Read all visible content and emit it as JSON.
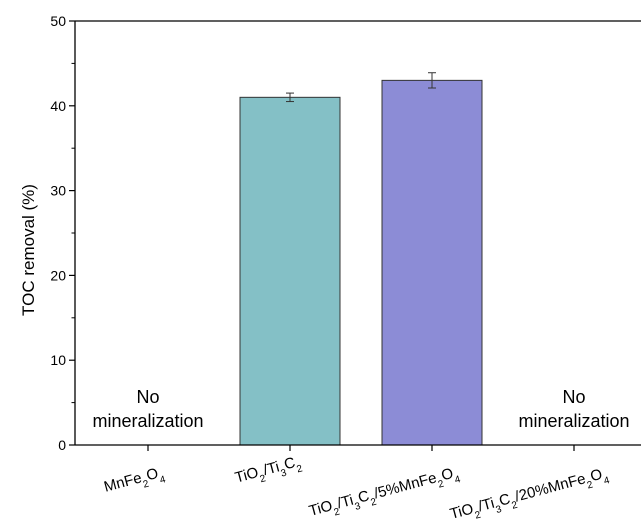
{
  "chart_data": {
    "type": "bar",
    "title": "",
    "xlabel": "",
    "ylabel": "TOC removal (%)",
    "ylim": [
      0,
      50
    ],
    "yticks": [
      0,
      10,
      20,
      30,
      40,
      50
    ],
    "grid": false,
    "categories": [
      "MnFe₂O₄",
      "TiO₂/Ti₃C₂",
      "TiO₂/Ti₃C₂/5%MnFe₂O₄",
      "TiO₂/Ti₃C₂/20%MnFe₂O₄"
    ],
    "values": [
      0,
      41,
      43,
      0
    ],
    "errors": [
      0,
      0.5,
      0.9,
      0
    ],
    "bar_colors": [
      "#ffffff",
      "#84c0c6",
      "#8c8cd6",
      "#ffffff"
    ],
    "annotations": [
      {
        "category_index": 0,
        "lines": [
          "No",
          "mineralization"
        ]
      },
      {
        "category_index": 3,
        "lines": [
          "No",
          "mineralization"
        ]
      }
    ]
  }
}
